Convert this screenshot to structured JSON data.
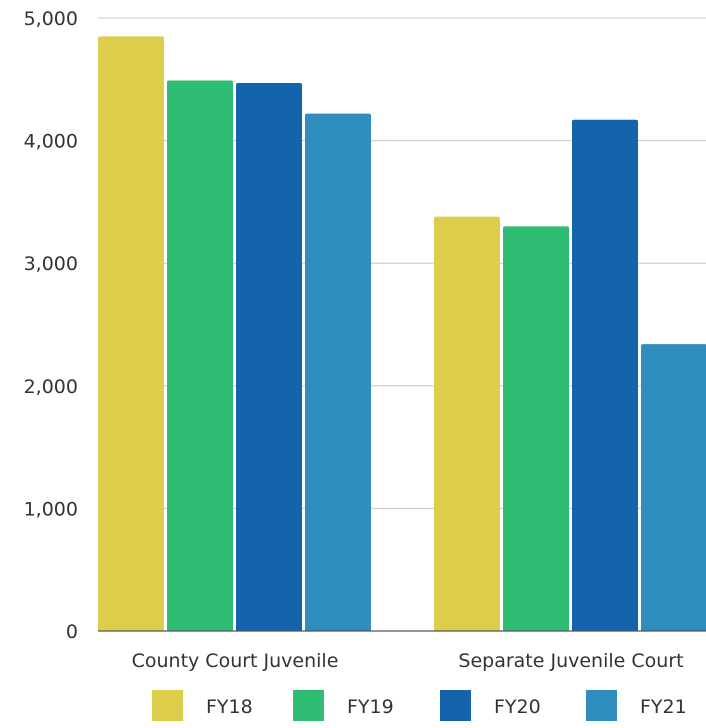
{
  "chart_data": {
    "type": "bar",
    "title": "",
    "xlabel": "",
    "ylabel": "",
    "ylim": [
      0,
      5000
    ],
    "yticks": [
      0,
      1000,
      2000,
      3000,
      4000,
      5000
    ],
    "ytick_labels": [
      "0",
      "1,000",
      "2,000",
      "3,000",
      "4,000",
      "5,000"
    ],
    "grid": true,
    "legend_position": "bottom",
    "categories": [
      "County Court Juvenile",
      "Separate Juvenile Court"
    ],
    "series": [
      {
        "name": "FY18",
        "color": "#dccd4a",
        "values": [
          4850,
          3380
        ]
      },
      {
        "name": "FY19",
        "color": "#2ebd72",
        "values": [
          4490,
          3300
        ]
      },
      {
        "name": "FY20",
        "color": "#1463ad",
        "values": [
          4470,
          4170
        ]
      },
      {
        "name": "FY21",
        "color": "#2f8ebf",
        "values": [
          4220,
          2340
        ]
      }
    ]
  }
}
